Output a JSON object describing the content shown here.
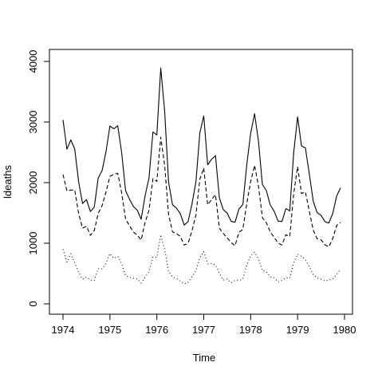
{
  "chart_data": {
    "type": "line",
    "title": "",
    "xlabel": "Time",
    "ylabel": "ldeaths",
    "xlim": [
      1974,
      1980
    ],
    "ylim": [
      0,
      4000
    ],
    "xticks": [
      1974,
      1975,
      1976,
      1977,
      1978,
      1979,
      1980
    ],
    "yticks": [
      0,
      1000,
      2000,
      3000,
      4000
    ],
    "grid": false,
    "x_start": 1974,
    "x_step": 0.0833333333,
    "series": [
      {
        "line_style": "solid",
        "color": "#000000",
        "values": [
          3035,
          2552,
          2704,
          2554,
          2014,
          1655,
          1721,
          1524,
          1596,
          2074,
          2199,
          2512,
          2933,
          2889,
          2938,
          2497,
          1870,
          1726,
          1607,
          1545,
          1396,
          1787,
          2076,
          2837,
          2787,
          3891,
          3179,
          2011,
          1636,
          1580,
          1489,
          1300,
          1356,
          1653,
          2013,
          2823,
          3102,
          2294,
          2385,
          2444,
          1748,
          1554,
          1498,
          1361,
          1346,
          1564,
          1640,
          2293,
          2815,
          3137,
          2679,
          1969,
          1870,
          1633,
          1529,
          1366,
          1357,
          1570,
          1535,
          2491,
          3084,
          2605,
          2573,
          2143,
          1693,
          1504,
          1461,
          1354,
          1333,
          1492,
          1781,
          1915
        ]
      },
      {
        "line_style": "dashed",
        "color": "#000000",
        "values": [
          2134,
          1863,
          1877,
          1877,
          1492,
          1249,
          1280,
          1131,
          1209,
          1492,
          1621,
          1846,
          2103,
          2137,
          2153,
          1833,
          1403,
          1288,
          1186,
          1133,
          1053,
          1347,
          1545,
          2066,
          2020,
          2750,
          2283,
          1479,
          1189,
          1160,
          1113,
          970,
          999,
          1208,
          1467,
          2059,
          2240,
          1634,
          1722,
          1801,
          1246,
          1162,
          1087,
          1013,
          959,
          1179,
          1229,
          1655,
          2019,
          2284,
          1942,
          1423,
          1340,
          1187,
          1098,
          1004,
          970,
          1140,
          1110,
          1812,
          2263,
          1820,
          1846,
          1531,
          1215,
          1075,
          1056,
          975,
          940,
          1081,
          1294,
          1341
        ]
      },
      {
        "line_style": "dotted",
        "color": "#000000",
        "values": [
          901,
          689,
          827,
          677,
          522,
          406,
          441,
          393,
          387,
          582,
          578,
          666,
          830,
          752,
          785,
          664,
          467,
          438,
          421,
          412,
          343,
          440,
          531,
          771,
          767,
          1141,
          896,
          532,
          447,
          420,
          376,
          330,
          357,
          445,
          546,
          764,
          862,
          660,
          663,
          643,
          502,
          392,
          411,
          348,
          387,
          385,
          411,
          638,
          796,
          853,
          737,
          546,
          530,
          446,
          431,
          362,
          387,
          430,
          425,
          679,
          821,
          785,
          727,
          612,
          478,
          429,
          405,
          379,
          393,
          411,
          487,
          574
        ]
      }
    ]
  }
}
